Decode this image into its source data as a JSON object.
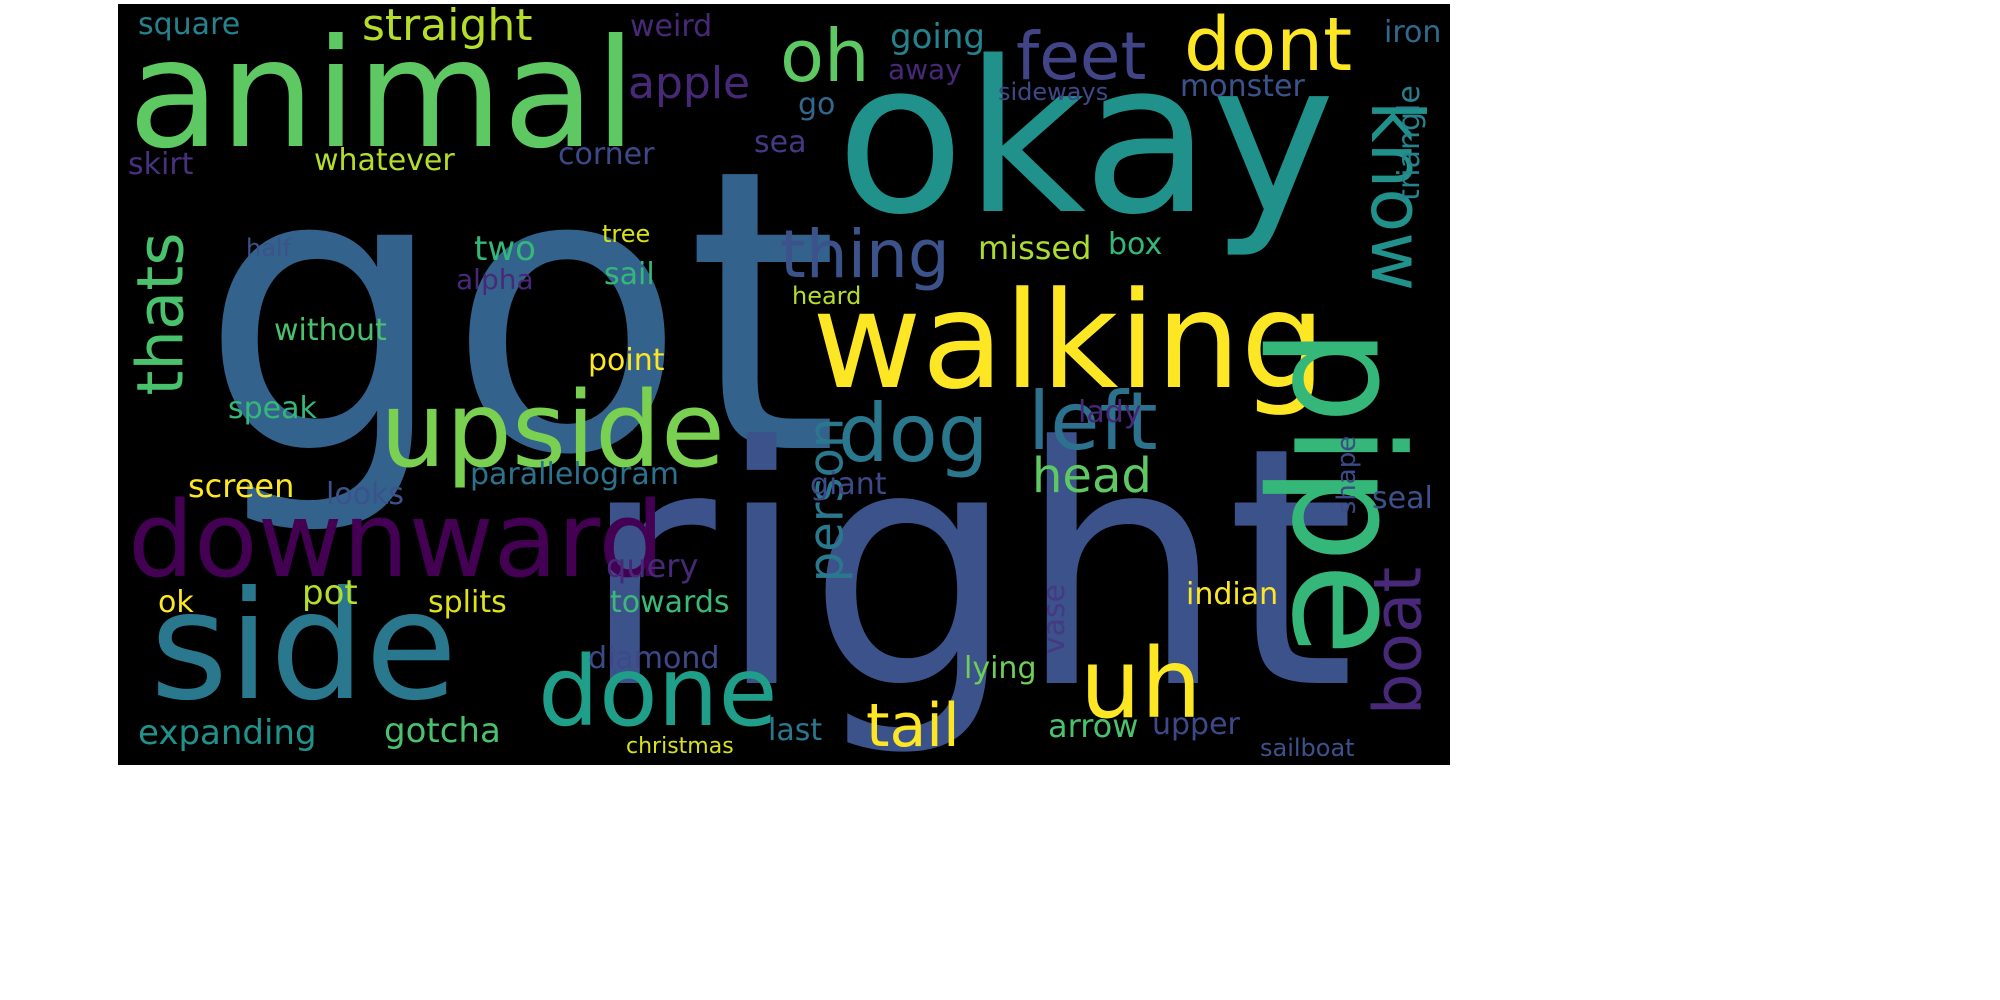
{
  "palette": {
    "background": "#000000",
    "page": "#ffffff",
    "dark_purple": "#440154",
    "indigo": "#46327e",
    "blue": "#365c8d",
    "teal": "#277f8e",
    "sea_green": "#1fa187",
    "green": "#4ac16d",
    "lime": "#a0da39",
    "yellow": "#fde725"
  },
  "words": [
    {
      "text": "got",
      "color": "#33638d"
    },
    {
      "text": "right",
      "color": "#3b528b"
    },
    {
      "text": "okay",
      "color": "#21918c"
    },
    {
      "text": "animal",
      "color": "#5ec962"
    },
    {
      "text": "walking",
      "color": "#fde725"
    },
    {
      "text": "side",
      "color": "#2a788e"
    },
    {
      "text": "downward",
      "color": "#440154"
    },
    {
      "text": "upside",
      "color": "#7ad151"
    },
    {
      "text": "pipe",
      "color": "#35b779"
    },
    {
      "text": "done",
      "color": "#1f9e89"
    },
    {
      "text": "uh",
      "color": "#fde725"
    },
    {
      "text": "dog",
      "color": "#2a788e"
    },
    {
      "text": "left",
      "color": "#2c728e"
    },
    {
      "text": "dont",
      "color": "#fde725"
    },
    {
      "text": "oh",
      "color": "#5ec962"
    },
    {
      "text": "feet",
      "color": "#414487"
    },
    {
      "text": "thing",
      "color": "#3b528b"
    },
    {
      "text": "know",
      "color": "#21918c"
    },
    {
      "text": "thats",
      "color": "#4ac16d"
    },
    {
      "text": "tail",
      "color": "#fde725"
    },
    {
      "text": "boat",
      "color": "#482878"
    },
    {
      "text": "head",
      "color": "#5ec962"
    },
    {
      "text": "person",
      "color": "#2a788e"
    },
    {
      "text": "straight",
      "color": "#b5de2b"
    },
    {
      "text": "apple",
      "color": "#482878"
    },
    {
      "text": "square",
      "color": "#26828e"
    },
    {
      "text": "weird",
      "color": "#482878"
    },
    {
      "text": "going",
      "color": "#26828e"
    },
    {
      "text": "iron",
      "color": "#31688e"
    },
    {
      "text": "away",
      "color": "#482878"
    },
    {
      "text": "sideways",
      "color": "#3e4989"
    },
    {
      "text": "monster",
      "color": "#3b528b"
    },
    {
      "text": "go",
      "color": "#31688e"
    },
    {
      "text": "triangle",
      "color": "#26828e"
    },
    {
      "text": "skirt",
      "color": "#46327e"
    },
    {
      "text": "whatever",
      "color": "#b5de2b"
    },
    {
      "text": "corner",
      "color": "#3e4989"
    },
    {
      "text": "sea",
      "color": "#443983"
    },
    {
      "text": "half",
      "color": "#3b528b"
    },
    {
      "text": "two",
      "color": "#35b779"
    },
    {
      "text": "tree",
      "color": "#d8e219"
    },
    {
      "text": "missed",
      "color": "#addc30"
    },
    {
      "text": "box",
      "color": "#35b779"
    },
    {
      "text": "alpha",
      "color": "#482878"
    },
    {
      "text": "sail",
      "color": "#35b779"
    },
    {
      "text": "heard",
      "color": "#b5de2b"
    },
    {
      "text": "without",
      "color": "#4ac16d"
    },
    {
      "text": "point",
      "color": "#fde725"
    },
    {
      "text": "speak",
      "color": "#35b779"
    },
    {
      "text": "lady",
      "color": "#482878"
    },
    {
      "text": "shape",
      "color": "#3e4989"
    },
    {
      "text": "screen",
      "color": "#fde725"
    },
    {
      "text": "looks",
      "color": "#3b528b"
    },
    {
      "text": "parallelogram",
      "color": "#2c728e"
    },
    {
      "text": "giant",
      "color": "#3e4989"
    },
    {
      "text": "seal",
      "color": "#3b528b"
    },
    {
      "text": "query",
      "color": "#482878"
    },
    {
      "text": "pot",
      "color": "#b5de2b"
    },
    {
      "text": "ok",
      "color": "#fde725"
    },
    {
      "text": "splits",
      "color": "#dde318"
    },
    {
      "text": "towards",
      "color": "#3aba76"
    },
    {
      "text": "indian",
      "color": "#fde725"
    },
    {
      "text": "vase",
      "color": "#443983"
    },
    {
      "text": "diamond",
      "color": "#3e4989"
    },
    {
      "text": "lying",
      "color": "#6ece58"
    },
    {
      "text": "expanding",
      "color": "#21918c"
    },
    {
      "text": "gotcha",
      "color": "#4ac16d"
    },
    {
      "text": "last",
      "color": "#2a788e"
    },
    {
      "text": "arrow",
      "color": "#4ac16d"
    },
    {
      "text": "upper",
      "color": "#3e4989"
    },
    {
      "text": "christmas",
      "color": "#d8e219"
    },
    {
      "text": "sailboat",
      "color": "#3b528b"
    }
  ]
}
